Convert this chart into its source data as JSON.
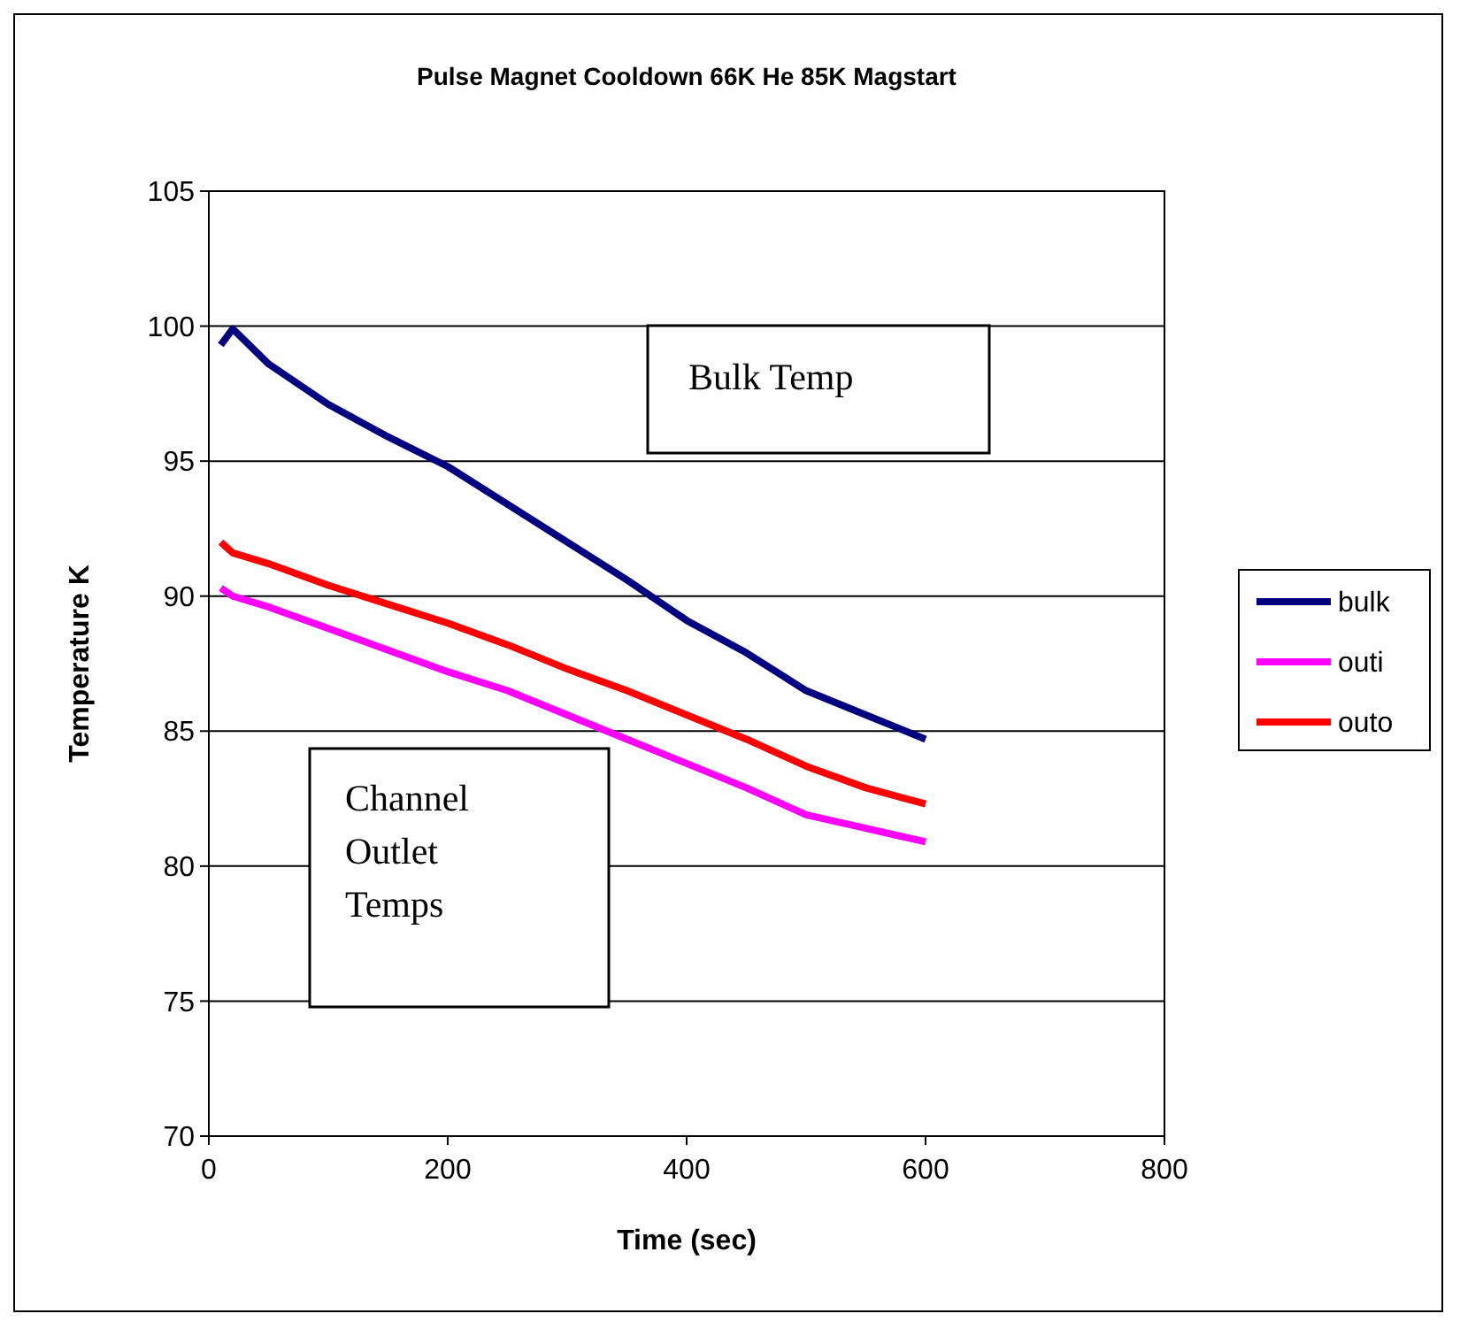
{
  "chart_data": {
    "type": "line",
    "title": "Pulse Magnet Cooldown 66K He 85K Magstart",
    "xlabel": "Time (sec)",
    "ylabel": "Temperature K",
    "x": [
      10,
      20,
      50,
      100,
      150,
      200,
      250,
      300,
      350,
      400,
      450,
      500,
      550,
      600
    ],
    "series": [
      {
        "name": "bulk",
        "color": "#000080",
        "values": [
          99.3,
          99.9,
          98.6,
          97.1,
          95.9,
          94.8,
          93.4,
          92.0,
          90.6,
          89.1,
          87.9,
          86.5,
          85.6,
          84.7
        ]
      },
      {
        "name": "outi",
        "color": "#ff00ff",
        "values": [
          90.3,
          90.0,
          89.6,
          88.8,
          88.0,
          87.2,
          86.5,
          85.6,
          84.7,
          83.8,
          82.9,
          81.9,
          81.4,
          80.9
        ]
      },
      {
        "name": "outo",
        "color": "#ff0000",
        "values": [
          92.0,
          91.6,
          91.2,
          90.4,
          89.7,
          89.0,
          88.2,
          87.3,
          86.5,
          85.6,
          84.7,
          83.7,
          82.9,
          82.3
        ]
      }
    ],
    "xlim": [
      0,
      800
    ],
    "xticks": [
      0,
      200,
      400,
      600,
      800
    ],
    "ylim": [
      70,
      105
    ],
    "yticks": [
      70,
      75,
      80,
      85,
      90,
      95,
      100,
      105
    ],
    "grid": "y",
    "legend": "right",
    "marker": "none",
    "line_style": "solid",
    "annotations": [
      "Bulk Temp",
      "Channel\nOutlet\nTemps"
    ]
  }
}
